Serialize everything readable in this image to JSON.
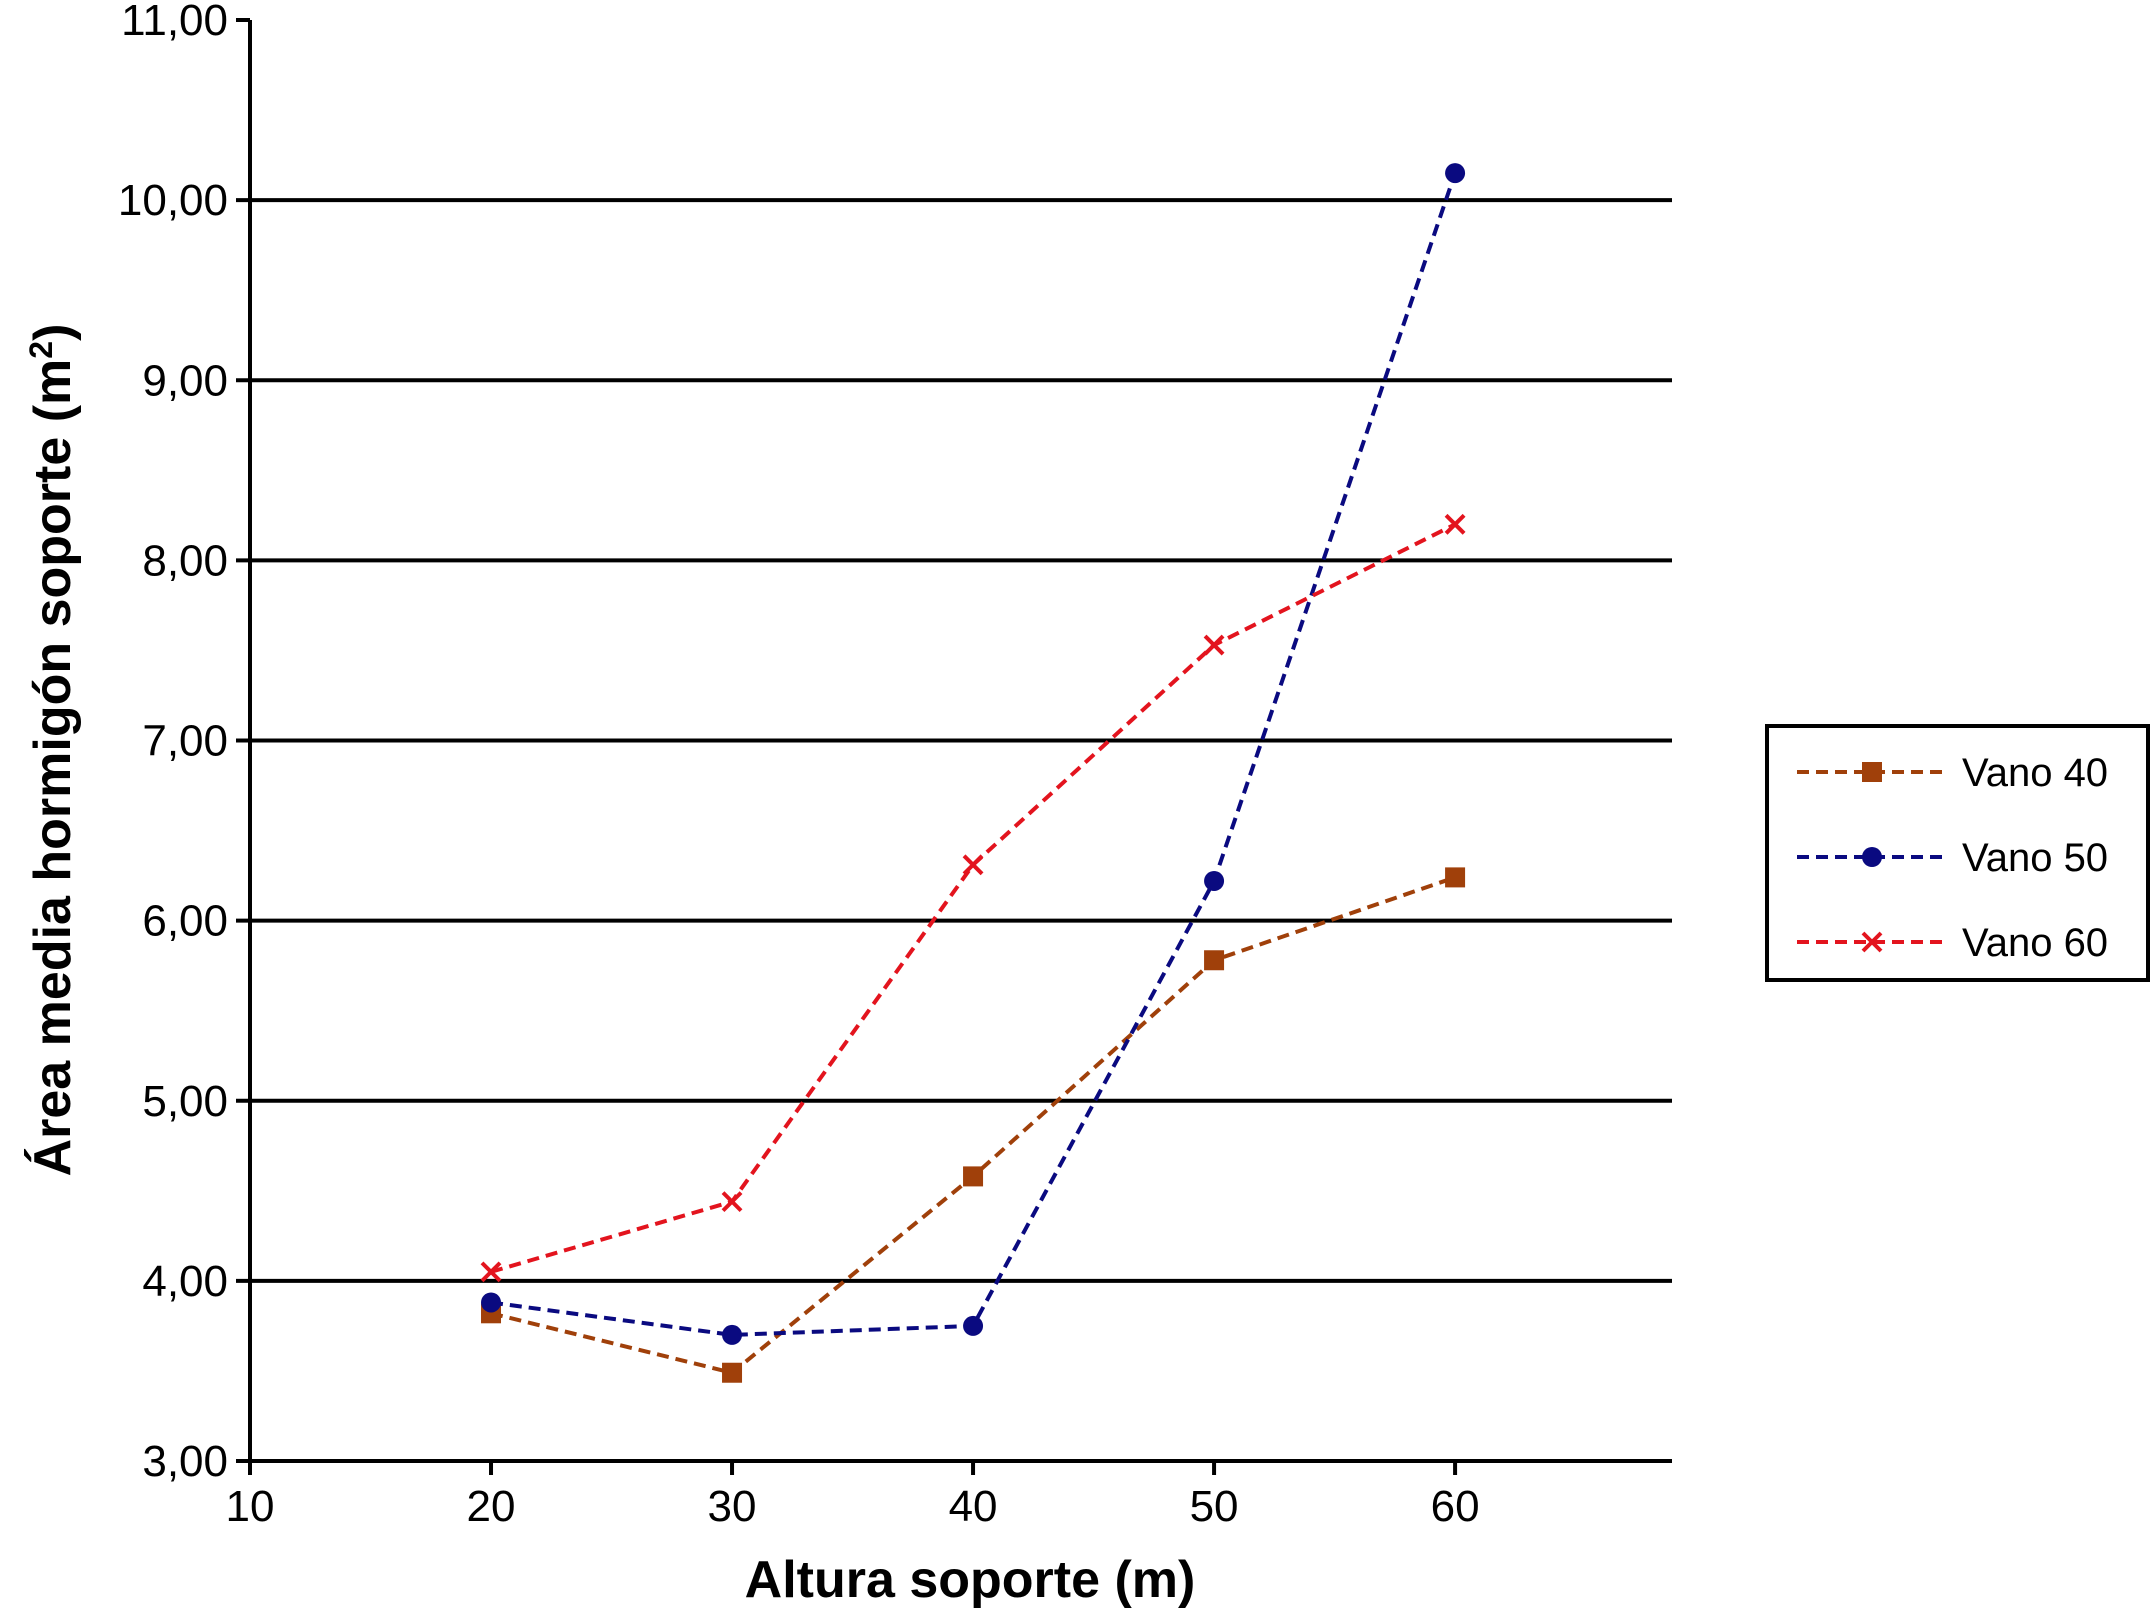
{
  "chart_data": {
    "type": "line",
    "xlabel": "Altura soporte (m)",
    "ylabel_main": "Área media hormigón soporte (m",
    "ylabel_sup": "2",
    "ylabel_close": ")",
    "xlim": [
      10,
      69
    ],
    "ylim": [
      3,
      11
    ],
    "x_ticks": [
      10,
      20,
      30,
      40,
      50,
      60
    ],
    "y_ticks": [
      3,
      4,
      5,
      6,
      7,
      8,
      9,
      10,
      11
    ],
    "y_tick_labels": [
      "3,00",
      "4,00",
      "5,00",
      "6,00",
      "7,00",
      "8,00",
      "9,00",
      "10,00",
      "11,00"
    ],
    "x_tick_labels": [
      "10",
      "20",
      "30",
      "40",
      "50",
      "60"
    ],
    "grid": "horizontal",
    "legend_position": "right",
    "x": [
      20,
      30,
      40,
      50,
      60
    ],
    "series": [
      {
        "name": "Vano 40",
        "color": "#a0400a",
        "marker": "square",
        "values": [
          3.82,
          3.49,
          4.58,
          5.78,
          6.24
        ]
      },
      {
        "name": "Vano 50",
        "color": "#0a0a80",
        "marker": "circle",
        "values": [
          3.88,
          3.7,
          3.75,
          6.22,
          10.15
        ]
      },
      {
        "name": "Vano 60",
        "color": "#e3141e",
        "marker": "x",
        "values": [
          4.05,
          4.44,
          6.31,
          7.53,
          8.2
        ]
      }
    ]
  }
}
